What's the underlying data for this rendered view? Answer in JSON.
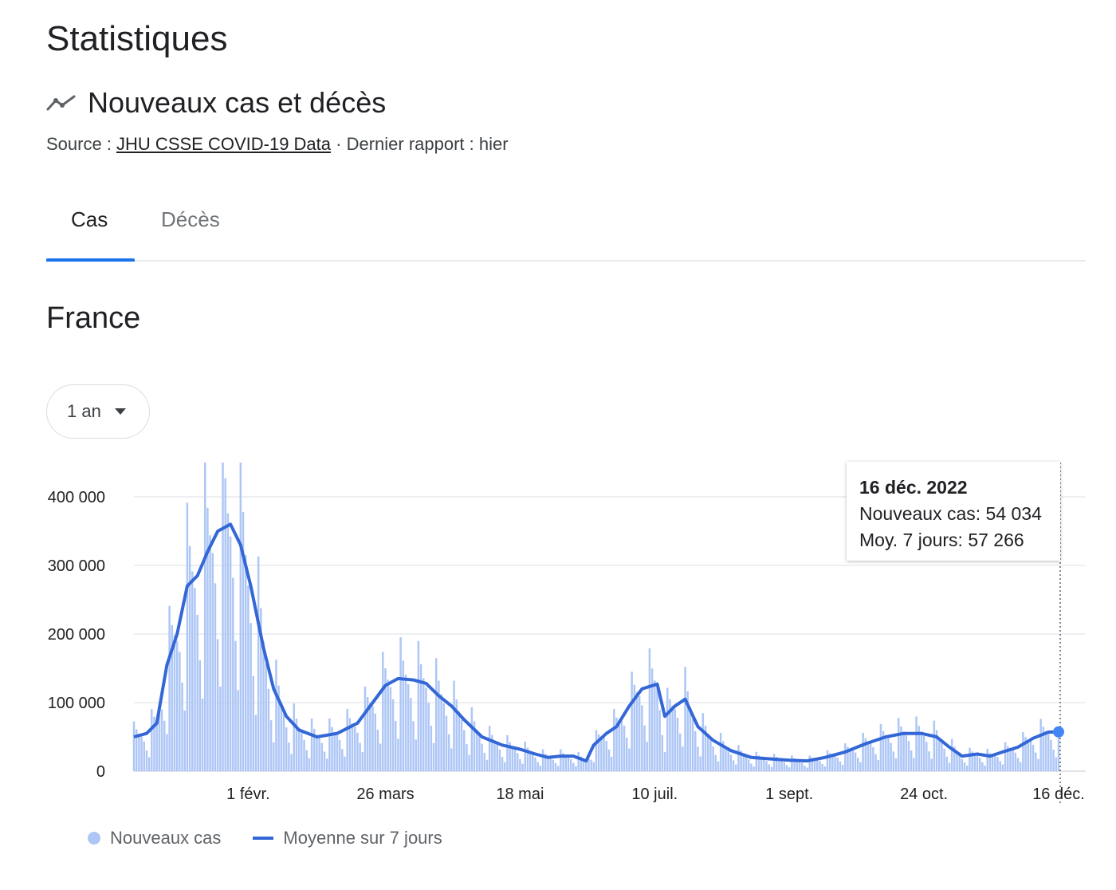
{
  "page": {
    "title": "Statistiques",
    "subtitle": "Nouveaux cas et décès",
    "source_label": "Source : ",
    "source_link": "JHU CSSE COVID-19 Data",
    "report": " · Dernier rapport : hier",
    "tabs": [
      "Cas",
      "Décès"
    ],
    "active_tab": "Cas",
    "country": "France",
    "range": "1 an"
  },
  "tooltip": {
    "date": "16 déc. 2022",
    "cases_line": "Nouveaux cas: 54 034",
    "avg_line": "Moy. 7 jours: 57 266"
  },
  "legend": {
    "cases": "Nouveaux cas",
    "avg": "Moyenne sur 7 jours"
  },
  "colors": {
    "bars": "#adc6f6",
    "line": "#3367d6",
    "grid": "#e8eaed",
    "accent": "#1a73e8"
  },
  "chart_data": {
    "type": "bar",
    "ylim": [
      0,
      450000
    ],
    "yticks": [
      {
        "value": 0,
        "label": "0"
      },
      {
        "value": 100000,
        "label": "100 000"
      },
      {
        "value": 200000,
        "label": "200 000"
      },
      {
        "value": 300000,
        "label": "300 000"
      },
      {
        "value": 400000,
        "label": "400 000"
      }
    ],
    "xticks": [
      {
        "day": 45,
        "label": "1 févr."
      },
      {
        "day": 99,
        "label": "26 mars"
      },
      {
        "day": 152,
        "label": "18 mai"
      },
      {
        "day": 205,
        "label": "10 juil."
      },
      {
        "day": 258,
        "label": "1 sept."
      },
      {
        "day": 311,
        "label": "24 oct."
      },
      {
        "day": 364,
        "label": "16 déc."
      }
    ],
    "series": [
      {
        "name": "Moyenne sur 7 jours",
        "kind": "line",
        "points": [
          [
            0,
            50000
          ],
          [
            5,
            55000
          ],
          [
            9,
            70000
          ],
          [
            13,
            155000
          ],
          [
            17,
            200000
          ],
          [
            21,
            270000
          ],
          [
            25,
            285000
          ],
          [
            29,
            320000
          ],
          [
            33,
            350000
          ],
          [
            38,
            360000
          ],
          [
            42,
            330000
          ],
          [
            46,
            270000
          ],
          [
            51,
            180000
          ],
          [
            55,
            120000
          ],
          [
            60,
            80000
          ],
          [
            65,
            60000
          ],
          [
            72,
            50000
          ],
          [
            80,
            55000
          ],
          [
            88,
            70000
          ],
          [
            94,
            100000
          ],
          [
            99,
            125000
          ],
          [
            104,
            135000
          ],
          [
            110,
            133000
          ],
          [
            115,
            128000
          ],
          [
            120,
            110000
          ],
          [
            125,
            95000
          ],
          [
            130,
            75000
          ],
          [
            137,
            50000
          ],
          [
            145,
            38000
          ],
          [
            152,
            32000
          ],
          [
            158,
            25000
          ],
          [
            163,
            20000
          ],
          [
            168,
            22000
          ],
          [
            173,
            22000
          ],
          [
            178,
            15000
          ],
          [
            181,
            38000
          ],
          [
            186,
            55000
          ],
          [
            190,
            65000
          ],
          [
            195,
            95000
          ],
          [
            200,
            120000
          ],
          [
            206,
            127000
          ],
          [
            209,
            80000
          ],
          [
            213,
            95000
          ],
          [
            217,
            105000
          ],
          [
            222,
            65000
          ],
          [
            228,
            45000
          ],
          [
            235,
            30000
          ],
          [
            243,
            20000
          ],
          [
            250,
            18000
          ],
          [
            258,
            16000
          ],
          [
            265,
            15000
          ],
          [
            272,
            20000
          ],
          [
            280,
            28000
          ],
          [
            288,
            40000
          ],
          [
            296,
            50000
          ],
          [
            303,
            55000
          ],
          [
            310,
            55000
          ],
          [
            316,
            50000
          ],
          [
            321,
            35000
          ],
          [
            326,
            22000
          ],
          [
            332,
            25000
          ],
          [
            337,
            22000
          ],
          [
            342,
            28000
          ],
          [
            348,
            35000
          ],
          [
            354,
            48000
          ],
          [
            360,
            57000
          ],
          [
            364,
            57266
          ]
        ]
      },
      {
        "name": "Nouveaux cas",
        "kind": "bar",
        "last_value": 54034
      }
    ]
  }
}
